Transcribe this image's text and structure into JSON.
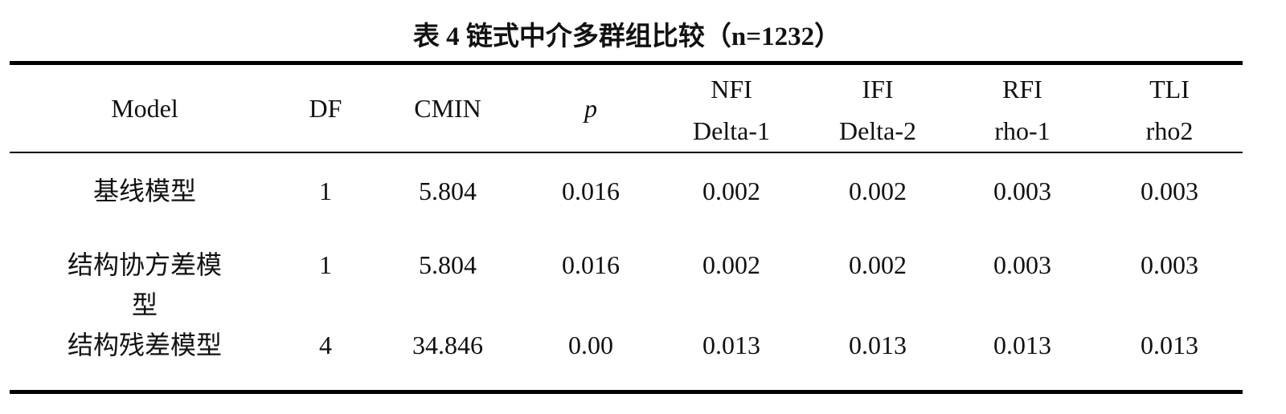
{
  "title": "表 4 链式中介多群组比较（n=1232）",
  "table": {
    "header": [
      [
        "Model"
      ],
      [
        "DF"
      ],
      [
        "CMIN"
      ],
      [
        "p"
      ],
      [
        "NFI",
        "Delta-1"
      ],
      [
        "IFI",
        "Delta-2"
      ],
      [
        "RFI",
        "rho-1"
      ],
      [
        "TLI",
        "rho2"
      ]
    ],
    "rows": [
      [
        "基线模型",
        "1",
        "5.804",
        "0.016",
        "0.002",
        "0.002",
        "0.003",
        "0.003"
      ],
      [
        "结构协方差模型",
        "1",
        "5.804",
        "0.016",
        "0.002",
        "0.002",
        "0.003",
        "0.003"
      ],
      [
        "结构残差模型",
        "4",
        "34.846",
        "0.00",
        "0.013",
        "0.013",
        "0.013",
        "0.013"
      ]
    ]
  }
}
